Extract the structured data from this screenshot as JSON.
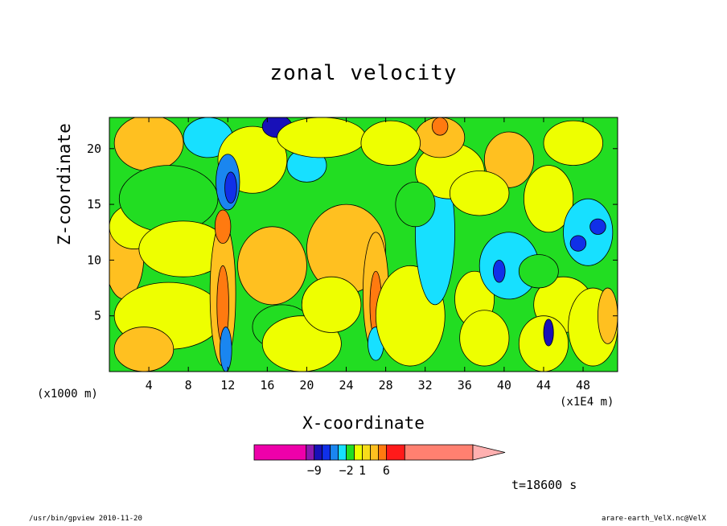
{
  "chart_data": {
    "type": "heatmap",
    "title": "zonal velocity",
    "xlabel": "X-coordinate",
    "ylabel": "Z-coordinate",
    "x_unit": "(x1000 m)",
    "x_unit_right": "(x1E4 m)",
    "xlim": [
      0,
      51.5
    ],
    "ylim": [
      0,
      22.8
    ],
    "x_ticks": [
      4,
      8,
      12,
      16,
      20,
      24,
      28,
      32,
      36,
      40,
      44,
      48
    ],
    "y_ticks": [
      5,
      10,
      15,
      20
    ],
    "time_label": "t=18600 s",
    "colorbar": {
      "labels": [
        {
          "value": -9,
          "text": "−9"
        },
        {
          "value": -2,
          "text": "−2"
        },
        {
          "value": 1,
          "text": "1"
        },
        {
          "value": 6,
          "text": "6"
        }
      ],
      "levels": [
        {
          "from": -15,
          "to": -10,
          "color": "#ee00aa"
        },
        {
          "from": -10,
          "to": -9,
          "color": "#8a1ab0"
        },
        {
          "from": -9,
          "to": -7,
          "color": "#1810b8"
        },
        {
          "from": -7,
          "to": -5,
          "color": "#1030e8"
        },
        {
          "from": -5,
          "to": -3,
          "color": "#1a86f0"
        },
        {
          "from": -3,
          "to": -2,
          "color": "#17e0ff"
        },
        {
          "from": -2,
          "to": -1,
          "color": "#22dd22"
        },
        {
          "from": -1,
          "to": 1,
          "color": "#eeff00"
        },
        {
          "from": 1,
          "to": 2,
          "color": "#f7dc1a"
        },
        {
          "from": 2,
          "to": 4,
          "color": "#ffc020"
        },
        {
          "from": 4,
          "to": 6,
          "color": "#ff7a10"
        },
        {
          "from": 6,
          "to": 8,
          "color": "#ff1a1a"
        },
        {
          "from": 8,
          "to": 15,
          "color": "#ff8070"
        }
      ]
    },
    "regions": [
      {
        "x": 1.5,
        "z": 10.5,
        "rx": 2.0,
        "rz": 4.0,
        "level": "#ffc020"
      },
      {
        "x": 4.0,
        "z": 20.5,
        "rx": 3.5,
        "rz": 2.5,
        "level": "#ffc020"
      },
      {
        "x": 2.5,
        "z": 13.0,
        "rx": 2.5,
        "rz": 2.0,
        "level": "#eeff00"
      },
      {
        "x": 6.0,
        "z": 15.5,
        "rx": 5.0,
        "rz": 3.0,
        "level": "#22dd22"
      },
      {
        "x": 7.5,
        "z": 11.0,
        "rx": 4.5,
        "rz": 2.5,
        "level": "#eeff00"
      },
      {
        "x": 6.0,
        "z": 5.0,
        "rx": 5.5,
        "rz": 3.0,
        "level": "#eeff00"
      },
      {
        "x": 3.5,
        "z": 2.0,
        "rx": 3.0,
        "rz": 2.0,
        "level": "#ffc020"
      },
      {
        "x": 10.0,
        "z": 21.0,
        "rx": 2.5,
        "rz": 1.8,
        "level": "#17e0ff"
      },
      {
        "x": 14.5,
        "z": 19.0,
        "rx": 3.5,
        "rz": 3.0,
        "level": "#eeff00"
      },
      {
        "x": 12.0,
        "z": 17.0,
        "rx": 1.2,
        "rz": 2.5,
        "level": "#1a86f0"
      },
      {
        "x": 12.3,
        "z": 16.5,
        "rx": 0.6,
        "rz": 1.4,
        "level": "#1030e8"
      },
      {
        "x": 11.5,
        "z": 7.0,
        "rx": 1.3,
        "rz": 6.5,
        "level": "#ffc020"
      },
      {
        "x": 11.5,
        "z": 6.0,
        "rx": 0.6,
        "rz": 3.5,
        "level": "#ff7a10"
      },
      {
        "x": 11.5,
        "z": 13.0,
        "rx": 0.8,
        "rz": 1.5,
        "level": "#ff7a10"
      },
      {
        "x": 11.8,
        "z": 2.0,
        "rx": 0.6,
        "rz": 2.0,
        "level": "#1a86f0"
      },
      {
        "x": 16.5,
        "z": 9.5,
        "rx": 3.5,
        "rz": 3.5,
        "level": "#ffc020"
      },
      {
        "x": 17.5,
        "z": 4.0,
        "rx": 3.0,
        "rz": 2.0,
        "level": "#22dd22"
      },
      {
        "x": 19.5,
        "z": 2.5,
        "rx": 4.0,
        "rz": 2.5,
        "level": "#eeff00"
      },
      {
        "x": 17.0,
        "z": 22.0,
        "rx": 1.5,
        "rz": 1.0,
        "level": "#1810b8"
      },
      {
        "x": 20.0,
        "z": 18.5,
        "rx": 2.0,
        "rz": 1.5,
        "level": "#17e0ff"
      },
      {
        "x": 21.5,
        "z": 21.0,
        "rx": 4.5,
        "rz": 1.8,
        "level": "#eeff00"
      },
      {
        "x": 24.0,
        "z": 11.0,
        "rx": 4.0,
        "rz": 4.0,
        "level": "#ffc020"
      },
      {
        "x": 22.5,
        "z": 6.0,
        "rx": 3.0,
        "rz": 2.5,
        "level": "#eeff00"
      },
      {
        "x": 27.0,
        "z": 7.0,
        "rx": 1.3,
        "rz": 5.5,
        "level": "#ffc020"
      },
      {
        "x": 27.0,
        "z": 6.0,
        "rx": 0.6,
        "rz": 3.0,
        "level": "#ff7a10"
      },
      {
        "x": 27.0,
        "z": 2.5,
        "rx": 0.8,
        "rz": 1.5,
        "level": "#17e0ff"
      },
      {
        "x": 30.5,
        "z": 5.0,
        "rx": 3.5,
        "rz": 4.5,
        "level": "#eeff00"
      },
      {
        "x": 33.0,
        "z": 12.5,
        "rx": 2.0,
        "rz": 6.5,
        "level": "#17e0ff"
      },
      {
        "x": 34.5,
        "z": 18.0,
        "rx": 3.5,
        "rz": 2.5,
        "level": "#eeff00"
      },
      {
        "x": 33.5,
        "z": 21.0,
        "rx": 2.5,
        "rz": 1.8,
        "level": "#ffc020"
      },
      {
        "x": 33.5,
        "z": 22.0,
        "rx": 0.8,
        "rz": 0.8,
        "level": "#ff7a10"
      },
      {
        "x": 28.5,
        "z": 20.5,
        "rx": 3.0,
        "rz": 2.0,
        "level": "#eeff00"
      },
      {
        "x": 31.0,
        "z": 15.0,
        "rx": 2.0,
        "rz": 2.0,
        "level": "#22dd22"
      },
      {
        "x": 37.0,
        "z": 6.5,
        "rx": 2.0,
        "rz": 2.5,
        "level": "#eeff00"
      },
      {
        "x": 38.0,
        "z": 3.0,
        "rx": 2.5,
        "rz": 2.5,
        "level": "#eeff00"
      },
      {
        "x": 40.5,
        "z": 9.5,
        "rx": 3.0,
        "rz": 3.0,
        "level": "#17e0ff"
      },
      {
        "x": 39.5,
        "z": 9.0,
        "rx": 0.6,
        "rz": 1.0,
        "level": "#1030e8"
      },
      {
        "x": 40.5,
        "z": 19.0,
        "rx": 2.5,
        "rz": 2.5,
        "level": "#ffc020"
      },
      {
        "x": 37.5,
        "z": 16.0,
        "rx": 3.0,
        "rz": 2.0,
        "level": "#eeff00"
      },
      {
        "x": 44.5,
        "z": 15.5,
        "rx": 2.5,
        "rz": 3.0,
        "level": "#eeff00"
      },
      {
        "x": 47.0,
        "z": 20.5,
        "rx": 3.0,
        "rz": 2.0,
        "level": "#eeff00"
      },
      {
        "x": 48.5,
        "z": 12.5,
        "rx": 2.5,
        "rz": 3.0,
        "level": "#17e0ff"
      },
      {
        "x": 47.5,
        "z": 11.5,
        "rx": 0.8,
        "rz": 0.7,
        "level": "#1030e8"
      },
      {
        "x": 49.5,
        "z": 13.0,
        "rx": 0.8,
        "rz": 0.7,
        "level": "#1030e8"
      },
      {
        "x": 46.0,
        "z": 6.0,
        "rx": 3.0,
        "rz": 2.5,
        "level": "#eeff00"
      },
      {
        "x": 49.0,
        "z": 4.0,
        "rx": 2.5,
        "rz": 3.5,
        "level": "#eeff00"
      },
      {
        "x": 50.5,
        "z": 5.0,
        "rx": 1.0,
        "rz": 2.5,
        "level": "#ffc020"
      },
      {
        "x": 44.0,
        "z": 2.5,
        "rx": 2.5,
        "rz": 2.5,
        "level": "#eeff00"
      },
      {
        "x": 44.5,
        "z": 3.5,
        "rx": 0.5,
        "rz": 1.2,
        "level": "#1810b8"
      },
      {
        "x": 43.5,
        "z": 9.0,
        "rx": 2.0,
        "rz": 1.5,
        "level": "#22dd22"
      }
    ]
  },
  "footer": {
    "left": "/usr/bin/gpview  2010-11-20",
    "right": "arare-earth_VelX.nc@VelX"
  }
}
